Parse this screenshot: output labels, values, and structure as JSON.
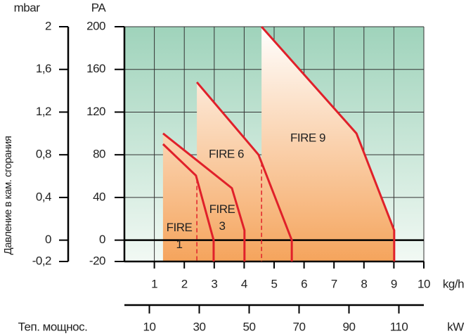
{
  "chart_data": {
    "type": "area",
    "y_label": "Давление в кам. сгорания",
    "y_unit": "PA",
    "y2_unit": "mbar",
    "x_unit": "kg/h",
    "x2_unit": "kW",
    "x2_label": "Теп. мощнос.",
    "xlim": [
      0,
      10
    ],
    "xticks": [
      1,
      2,
      3,
      4,
      5,
      6,
      7,
      8,
      9,
      10
    ],
    "x2lim": [
      0,
      120
    ],
    "x2ticks": [
      10,
      30,
      50,
      70,
      90,
      110
    ],
    "ylim": [
      -20,
      200
    ],
    "yticks": [
      200,
      160,
      120,
      80,
      40,
      0,
      -20
    ],
    "y2lim": [
      -0.2,
      2
    ],
    "y2ticks": [
      {
        "value": 2,
        "label": "2"
      },
      {
        "value": 1.6,
        "label": "1,6"
      },
      {
        "value": 1.2,
        "label": "1,2"
      },
      {
        "value": 0.8,
        "label": "0,8"
      },
      {
        "value": 0.4,
        "label": "0,4"
      },
      {
        "value": 0,
        "label": "0"
      },
      {
        "value": -0.2,
        "label": "-0,2"
      }
    ],
    "grid": true,
    "series": [
      {
        "name": "FIRE 1",
        "color": "#e0202a",
        "x": [
          1.29,
          2.39,
          2.98,
          2.98
        ],
        "values": [
          90,
          60.5,
          0,
          -20
        ]
      },
      {
        "name": "FIRE 3",
        "color": "#e0202a",
        "x": [
          1.29,
          3.59,
          4.01,
          4.01
        ],
        "values": [
          100,
          48.7,
          9.2,
          -20
        ]
      },
      {
        "name": "FIRE 6",
        "color": "#e0202a",
        "x": [
          2.42,
          4.48,
          5.59,
          5.59
        ],
        "values": [
          148,
          80,
          0,
          -20
        ]
      },
      {
        "name": "FIRE 9",
        "color": "#e0202a",
        "x": [
          4.58,
          7.75,
          9.01,
          9.01
        ],
        "values": [
          200,
          100,
          9.2,
          -20
        ]
      }
    ]
  }
}
